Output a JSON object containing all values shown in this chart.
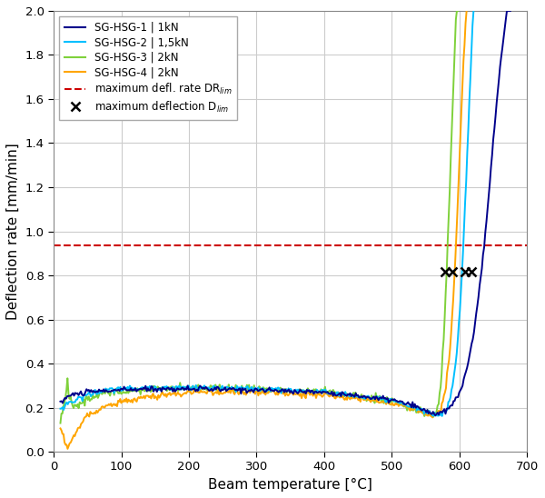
{
  "title": "",
  "xlabel": "Beam temperature [°C]",
  "ylabel": "Deflection rate [mm/min]",
  "xlim": [
    0,
    700
  ],
  "ylim": [
    0,
    2.0
  ],
  "xticks": [
    0,
    100,
    200,
    300,
    400,
    500,
    600,
    700
  ],
  "yticks": [
    0.0,
    0.2,
    0.4,
    0.6,
    0.8,
    1.0,
    1.2,
    1.4,
    1.6,
    1.8,
    2.0
  ],
  "drlim_y": 0.935,
  "colors": {
    "SG1": "#00008B",
    "SG2": "#00BFFF",
    "SG3": "#7FD13B",
    "SG4": "#FFA500"
  },
  "cross_markers": [
    [
      578,
      0.815
    ],
    [
      590,
      0.815
    ],
    [
      608,
      0.815
    ],
    [
      618,
      0.815
    ]
  ],
  "background_color": "#ffffff",
  "grid_color": "#cccccc",
  "figsize": [
    6.0,
    5.48
  ],
  "dpi": 100
}
